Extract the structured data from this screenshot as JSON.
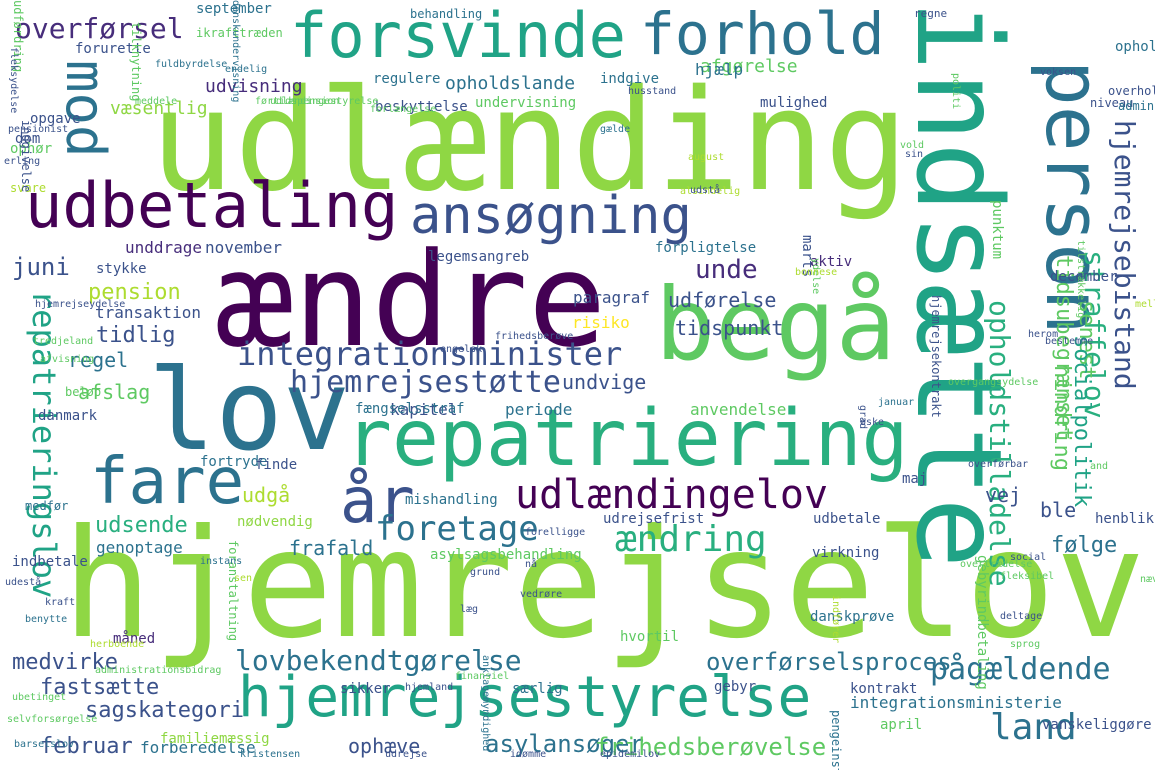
{
  "palette": {
    "dark": "#440154",
    "indigo": "#472d7b",
    "blue": "#3b528b",
    "steel": "#2c728e",
    "teal": "#21918c",
    "green": "#28ae80",
    "lime": "#5ec962",
    "yellowgreen": "#addc30",
    "yellow": "#fde725"
  },
  "words": [
    {
      "text": "hjemrejselov",
      "color": "#8fd744",
      "vertical": false
    },
    {
      "text": "udlænding",
      "color": "#8fd744",
      "vertical": false
    },
    {
      "text": "indsætte",
      "color": "#20a386",
      "vertical": true
    },
    {
      "text": "ændre",
      "color": "#440154",
      "vertical": false
    },
    {
      "text": "lov",
      "color": "#2c728e",
      "vertical": false
    },
    {
      "text": "begå",
      "color": "#5ec962",
      "vertical": false
    },
    {
      "text": "repatriering",
      "color": "#29af7f",
      "vertical": false
    },
    {
      "text": "forsvinde",
      "color": "#20a386",
      "vertical": false
    },
    {
      "text": "forhold",
      "color": "#2c728e",
      "vertical": false
    },
    {
      "text": "person",
      "color": "#2c728e",
      "vertical": true
    },
    {
      "text": "udbetaling",
      "color": "#440154",
      "vertical": false
    },
    {
      "text": "ansøgning",
      "color": "#3b528b",
      "vertical": false
    },
    {
      "text": "fare",
      "color": "#2c728e",
      "vertical": false
    },
    {
      "text": "år",
      "color": "#3b528b",
      "vertical": false
    },
    {
      "text": "mod",
      "color": "#2c728e",
      "vertical": true
    },
    {
      "text": "hjemrejsestyrelse",
      "color": "#20a386",
      "vertical": false
    },
    {
      "text": "udlændingelov",
      "color": "#440154",
      "vertical": false
    },
    {
      "text": "repatrieringslov",
      "color": "#20a386",
      "vertical": true
    },
    {
      "text": "integrationsminister",
      "color": "#3b528b",
      "vertical": false
    },
    {
      "text": "hjemrejsestøtte",
      "color": "#3b528b",
      "vertical": false
    },
    {
      "text": "foretage",
      "color": "#2c728e",
      "vertical": false
    },
    {
      "text": "ændring",
      "color": "#29af7f",
      "vertical": false
    },
    {
      "text": "overførsel",
      "color": "#472d7b",
      "vertical": false
    },
    {
      "text": "hjemrejsebistand",
      "color": "#3b528b",
      "vertical": true
    },
    {
      "text": "opholdstilladelse",
      "color": "#29af7f",
      "vertical": true
    },
    {
      "text": "straffelov",
      "color": "#29af7f",
      "vertical": true
    },
    {
      "text": "pågældende",
      "color": "#2c728e",
      "vertical": false
    },
    {
      "text": "land",
      "color": "#2c728e",
      "vertical": false
    },
    {
      "text": "lovbekendtgørelse",
      "color": "#2c728e",
      "vertical": false
    },
    {
      "text": "overførselsproces",
      "color": "#2c728e",
      "vertical": false
    },
    {
      "text": "asylansøger",
      "color": "#2c728e",
      "vertical": false
    },
    {
      "text": "sagskategori",
      "color": "#3b528b",
      "vertical": false
    },
    {
      "text": "frihedsberøvelse",
      "color": "#5ec962",
      "vertical": false
    },
    {
      "text": "juni",
      "color": "#3b528b",
      "vertical": false
    },
    {
      "text": "unde",
      "color": "#472d7b",
      "vertical": false
    },
    {
      "text": "pension",
      "color": "#addc30",
      "vertical": false
    },
    {
      "text": "tidlig",
      "color": "#3b528b",
      "vertical": false
    },
    {
      "text": "regel",
      "color": "#2c728e",
      "vertical": false
    },
    {
      "text": "afslag",
      "color": "#5ec962",
      "vertical": false
    },
    {
      "text": "udførelse",
      "color": "#3b528b",
      "vertical": false
    },
    {
      "text": "tidspunkt",
      "color": "#3b528b",
      "vertical": false
    },
    {
      "text": "undvige",
      "color": "#3b528b",
      "vertical": false
    },
    {
      "text": "frafald",
      "color": "#2c728e",
      "vertical": false
    },
    {
      "text": "følge",
      "color": "#2c728e",
      "vertical": false
    },
    {
      "text": "medvirke",
      "color": "#3b528b",
      "vertical": false
    },
    {
      "text": "fastsætte",
      "color": "#3b528b",
      "vertical": false
    },
    {
      "text": "februar",
      "color": "#3b528b",
      "vertical": false
    },
    {
      "text": "ophæve",
      "color": "#3b528b",
      "vertical": false
    },
    {
      "text": "vej",
      "color": "#3b528b",
      "vertical": false
    },
    {
      "text": "senest",
      "color": "#5ec962",
      "vertical": true
    },
    {
      "text": "hindring",
      "color": "#5ec962",
      "vertical": true
    },
    {
      "text": "socialpolitik",
      "color": "#20a386",
      "vertical": true
    },
    {
      "text": "tidsubegrænset",
      "color": "#5ec962",
      "vertical": true
    },
    {
      "text": "ble",
      "color": "#3b528b",
      "vertical": false
    },
    {
      "text": "udsende",
      "color": "#29af7f",
      "vertical": false
    },
    {
      "text": "udgå",
      "color": "#addc30",
      "vertical": false
    },
    {
      "text": "forberedelse",
      "color": "#2c728e",
      "vertical": false
    },
    {
      "text": "genoptage",
      "color": "#2c728e",
      "vertical": false
    },
    {
      "text": "mishandling",
      "color": "#2c728e",
      "vertical": false
    },
    {
      "text": "udvisning",
      "color": "#472d7b",
      "vertical": false
    },
    {
      "text": "opholdslande",
      "color": "#2c728e",
      "vertical": false
    },
    {
      "text": "væsentlig",
      "color": "#8fd744",
      "vertical": false
    },
    {
      "text": "afgørelse",
      "color": "#5ec962",
      "vertical": false
    },
    {
      "text": "hjælp",
      "color": "#2c728e",
      "vertical": false
    },
    {
      "text": "november",
      "color": "#3b528b",
      "vertical": false
    },
    {
      "text": "unddrage",
      "color": "#472d7b",
      "vertical": false
    },
    {
      "text": "risiko",
      "color": "#fde725",
      "vertical": false
    },
    {
      "text": "transaktion",
      "color": "#3b528b",
      "vertical": false
    },
    {
      "text": "paragraf",
      "color": "#3b528b",
      "vertical": false
    },
    {
      "text": "kapitel",
      "color": "#3b528b",
      "vertical": false
    },
    {
      "text": "periode",
      "color": "#2c728e",
      "vertical": false
    },
    {
      "text": "anvendelse",
      "color": "#5ec962",
      "vertical": false
    },
    {
      "text": "fængselsstraf",
      "color": "#2c728e",
      "vertical": false
    },
    {
      "text": "fortryde",
      "color": "#2c728e",
      "vertical": false
    },
    {
      "text": "finde",
      "color": "#3b528b",
      "vertical": false
    },
    {
      "text": "nødvendig",
      "color": "#8fd744",
      "vertical": false
    },
    {
      "text": "udbetale",
      "color": "#3b528b",
      "vertical": false
    },
    {
      "text": "maj",
      "color": "#3b528b",
      "vertical": false
    },
    {
      "text": "udrejsefrist",
      "color": "#3b528b",
      "vertical": false
    },
    {
      "text": "henblik",
      "color": "#3b528b",
      "vertical": false
    },
    {
      "text": "asylsagsbehandling",
      "color": "#5ec962",
      "vertical": false
    },
    {
      "text": "virkning",
      "color": "#3b528b",
      "vertical": false
    },
    {
      "text": "dansk­prøve",
      "color": "#2c728e",
      "vertical": false
    },
    {
      "text": "hvortil",
      "color": "#5ec962",
      "vertical": false
    },
    {
      "text": "måned",
      "color": "#472d7b",
      "vertical": false
    },
    {
      "text": "særlig",
      "color": "#2c728e",
      "vertical": false
    },
    {
      "text": "gebyr",
      "color": "#3b528b",
      "vertical": false
    },
    {
      "text": "kontrakt",
      "color": "#3b528b",
      "vertical": false
    },
    {
      "text": "integrationsministerie",
      "color": "#2c728e",
      "vertical": false
    },
    {
      "text": "april",
      "color": "#5ec962",
      "vertical": false
    },
    {
      "text": "vanskeliggøre",
      "color": "#3b528b",
      "vertical": false
    },
    {
      "text": "sikker",
      "color": "#3b528b",
      "vertical": false
    },
    {
      "text": "familiemæssig",
      "color": "#8fd744",
      "vertical": false
    },
    {
      "text": "ophold",
      "color": "#2c728e",
      "vertical": false
    },
    {
      "text": "marts",
      "color": "#3b528b",
      "vertical": true
    },
    {
      "text": "december",
      "color": "#3b528b",
      "vertical": false
    },
    {
      "text": "stykke",
      "color": "#3b528b",
      "vertical": false
    },
    {
      "text": "legemsangreb",
      "color": "#3b528b",
      "vertical": false
    },
    {
      "text": "forpligtelse",
      "color": "#2c728e",
      "vertical": false
    },
    {
      "text": "aktiv",
      "color": "#472d7b",
      "vertical": false
    },
    {
      "text": "mulighed",
      "color": "#3b528b",
      "vertical": false
    },
    {
      "text": "undervisning",
      "color": "#5ec962",
      "vertical": false
    },
    {
      "text": "beskyttelse",
      "color": "#3b528b",
      "vertical": false
    },
    {
      "text": "regulere",
      "color": "#2c728e",
      "vertical": false
    },
    {
      "text": "indgive",
      "color": "#2c728e",
      "vertical": false
    },
    {
      "text": "forurette",
      "color": "#3b528b",
      "vertical": false
    },
    {
      "text": "opgave",
      "color": "#3b528b",
      "vertical": false
    },
    {
      "text": "dom",
      "color": "#3b528b",
      "vertical": false
    },
    {
      "text": "ophør",
      "color": "#5ec962",
      "vertical": false
    },
    {
      "text": "svare",
      "color": "#addc30",
      "vertical": false
    },
    {
      "text": "september",
      "color": "#2c728e",
      "vertical": false
    },
    {
      "text": "behandling",
      "color": "#2c728e",
      "vertical": false
    },
    {
      "text": "ikrafttræden",
      "color": "#5ec962",
      "vertical": false
    },
    {
      "text": "regne",
      "color": "#3b528b",
      "vertical": false
    },
    {
      "text": "danmark",
      "color": "#3b528b",
      "vertical": false
    },
    {
      "text": "beløb",
      "color": "#5ec962",
      "vertical": false
    },
    {
      "text": "medfør",
      "color": "#2c728e",
      "vertical": false
    },
    {
      "text": "indbetale",
      "color": "#3b528b",
      "vertical": false
    },
    {
      "text": "punktum",
      "color": "#5ec962",
      "vertical": true
    },
    {
      "text": "hjemrejsekontrakt",
      "color": "#3b528b",
      "vertical": true
    },
    {
      "text": "gebyrindbetaling",
      "color": "#5ec962",
      "vertical": true
    },
    {
      "text": "foranstaltning",
      "color": "#5ec962",
      "vertical": true
    },
    {
      "text": "pengeinstitut",
      "color": "#2c728e",
      "vertical": true
    },
    {
      "text": "indgivelse",
      "color": "#3b528b",
      "vertical": true
    },
    {
      "text": "tilknytning",
      "color": "#5ec962",
      "vertical": true
    },
    {
      "text": "udførdring",
      "color": "#5ec962",
      "vertical": true
    },
    {
      "text": "danskundervisning",
      "color": "#2c728e",
      "vertical": true
    },
    {
      "text": "fleksydelse",
      "color": "#3b528b",
      "vertical": true
    },
    {
      "text": "fuldbyrdelse",
      "color": "#2c728e",
      "vertical": false
    },
    {
      "text": "endelig",
      "color": "#2c728e",
      "vertical": false
    },
    {
      "text": "meddele",
      "color": "#5ec962",
      "vertical": false
    },
    {
      "text": "husstand",
      "color": "#3b528b",
      "vertical": false
    },
    {
      "text": "forlængelse",
      "color": "#5ec962",
      "vertical": false
    },
    {
      "text": "pensionist",
      "color": "#3b528b",
      "vertical": false
    },
    {
      "text": "erling",
      "color": "#3b528b",
      "vertical": false
    },
    {
      "text": "gælde",
      "color": "#2c728e",
      "vertical": false
    },
    {
      "text": "august",
      "color": "#addc30",
      "vertical": false
    },
    {
      "text": "alsindelig",
      "color": "#addc30",
      "vertical": false
    },
    {
      "text": "udstå",
      "color": "#3b528b",
      "vertical": false
    },
    {
      "text": "vold",
      "color": "#5ec962",
      "vertical": false
    },
    {
      "text": "overholde",
      "color": "#3b528b",
      "vertical": false
    },
    {
      "text": "niveau",
      "color": "#3b528b",
      "vertical": false
    },
    {
      "text": "administration",
      "color": "#2c728e",
      "vertical": false
    },
    {
      "text": "politi",
      "color": "#5ec962",
      "vertical": true
    },
    {
      "text": "ydelse",
      "color": "#5ec962",
      "vertical": true
    },
    {
      "text": "tilstrækkelig",
      "color": "#5ec962",
      "vertical": true
    },
    {
      "text": "bonnese",
      "color": "#addc30",
      "vertical": false
    },
    {
      "text": "hjemrejseydelse",
      "color": "#3b528b",
      "vertical": false
    },
    {
      "text": "tredjeland",
      "color": "#5ec962",
      "vertical": false
    },
    {
      "text": "afvisning",
      "color": "#5ec962",
      "vertical": false
    },
    {
      "text": "engelsk",
      "color": "#3b528b",
      "vertical": false
    },
    {
      "text": "frihedsberøve",
      "color": "#3b528b",
      "vertical": false
    },
    {
      "text": "overgangsydelse",
      "color": "#5ec962",
      "vertical": false
    },
    {
      "text": "herom",
      "color": "#3b528b",
      "vertical": false
    },
    {
      "text": "bestemme",
      "color": "#3b528b",
      "vertical": false
    },
    {
      "text": "januar",
      "color": "#2c728e",
      "vertical": false
    },
    {
      "text": "grad",
      "color": "#3b528b",
      "vertical": true
    },
    {
      "text": "øske",
      "color": "#3b528b",
      "vertical": false
    },
    {
      "text": "overførbar",
      "color": "#3b528b",
      "vertical": false
    },
    {
      "text": "and",
      "color": "#5ec962",
      "vertical": false
    },
    {
      "text": "overtrædelse",
      "color": "#5ec962",
      "vertical": false
    },
    {
      "text": "social",
      "color": "#3b528b",
      "vertical": false
    },
    {
      "text": "fleksibel",
      "color": "#5ec962",
      "vertical": false
    },
    {
      "text": "nævne",
      "color": "#5ec962",
      "vertical": false
    },
    {
      "text": "deltage",
      "color": "#3b528b",
      "vertical": false
    },
    {
      "text": "sprog",
      "color": "#5ec962",
      "vertical": false
    },
    {
      "text": "indfører",
      "color": "#addc30",
      "vertical": true
    },
    {
      "text": "vedrøre",
      "color": "#3b528b",
      "vertical": false
    },
    {
      "text": "læg",
      "color": "#3b528b",
      "vertical": false
    },
    {
      "text": "anklagemyndighed",
      "color": "#2c728e",
      "vertical": true
    },
    {
      "text": "finansiel",
      "color": "#5ec962",
      "vertical": false
    },
    {
      "text": "hjemland",
      "color": "#3b528b",
      "vertical": false
    },
    {
      "text": "udrejse",
      "color": "#3b528b",
      "vertical": false
    },
    {
      "text": "idømme",
      "color": "#3b528b",
      "vertical": false
    },
    {
      "text": "epidemilov",
      "color": "#3b528b",
      "vertical": false
    },
    {
      "text": "kristensen",
      "color": "#2c728e",
      "vertical": false
    },
    {
      "text": "barselslov",
      "color": "#2c728e",
      "vertical": false
    },
    {
      "text": "selvforsørgelse",
      "color": "#5ec962",
      "vertical": false
    },
    {
      "text": "ubetinget",
      "color": "#5ec962",
      "vertical": false
    },
    {
      "text": "administrationsbidrag",
      "color": "#5ec962",
      "vertical": false
    },
    {
      "text": "herboende",
      "color": "#addc30",
      "vertical": false
    },
    {
      "text": "benytte",
      "color": "#2c728e",
      "vertical": false
    },
    {
      "text": "kraft",
      "color": "#3b528b",
      "vertical": false
    },
    {
      "text": "udestå",
      "color": "#3b528b",
      "vertical": false
    },
    {
      "text": "instans",
      "color": "#2c728e",
      "vertical": false
    },
    {
      "text": "sen",
      "color": "#addc30",
      "vertical": false
    },
    {
      "text": "nå",
      "color": "#3b528b",
      "vertical": false
    },
    {
      "text": "forelligge",
      "color": "#3b528b",
      "vertical": false
    },
    {
      "text": "grund",
      "color": "#3b528b",
      "vertical": false
    },
    {
      "text": "sin",
      "color": "#3b528b",
      "vertical": false
    },
    {
      "text": "voksen",
      "color": "#3b528b",
      "vertical": false
    },
    {
      "text": "udlændingestyrelse",
      "color": "#5ec962",
      "vertical": false
    },
    {
      "text": "førtidspension",
      "color": "#5ec962",
      "vertical": false
    },
    {
      "text": "mellemst",
      "color": "#addc30",
      "vertical": false
    },
    {
      "text": "straffe",
      "color": "#addc30",
      "vertical": false
    },
    {
      "text": "omstilling",
      "color": "#addc30",
      "vertical": true
    },
    {
      "text": "dom",
      "color": "#3b528b",
      "vertical": false
    },
    {
      "text": "haj",
      "color": "#3b528b",
      "vertical": false
    },
    {
      "text": "ophørte",
      "color": "#5ec962",
      "vertical": true
    }
  ]
}
